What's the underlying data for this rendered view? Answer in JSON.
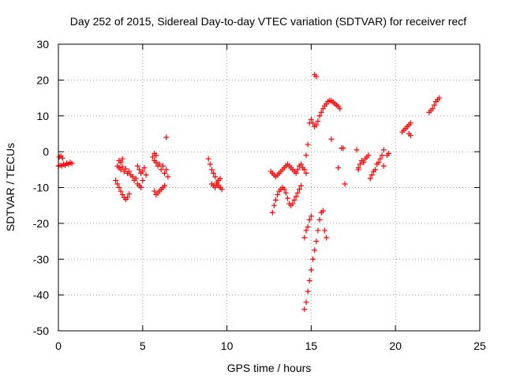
{
  "chart_data": {
    "type": "scatter",
    "title": "Day 252 of 2015, Sidereal Day-to-day VTEC variation (SDTVAR) for receiver recf",
    "xlabel": "GPS time / hours",
    "ylabel": "SDTVAR / TECUs",
    "xlim": [
      0,
      25
    ],
    "ylim": [
      -50,
      30
    ],
    "xticks": [
      0,
      5,
      10,
      15,
      20,
      25
    ],
    "yticks": [
      -50,
      -40,
      -30,
      -20,
      -10,
      0,
      10,
      20,
      30
    ],
    "xtick_labels": [
      "0",
      "5",
      "10",
      "15",
      "20",
      "25"
    ],
    "ytick_labels": [
      "-50",
      "-40",
      "-30",
      "-20",
      "-10",
      "0",
      "10",
      "20",
      "30"
    ],
    "grid": true,
    "marker": "plus",
    "color": "#ff0000",
    "segments": [
      {
        "x": [
          0.0,
          0.1,
          0.2,
          0.3,
          0.4,
          0.5,
          0.6,
          0.7,
          0.8
        ],
        "y": [
          -4.0,
          -3.8,
          -4.0,
          -3.5,
          -3.8,
          -3.2,
          -3.5,
          -3.0,
          -3.3
        ]
      },
      {
        "x": [
          0.05,
          0.15,
          0.25
        ],
        "y": [
          -1.5,
          -1.2,
          -1.8
        ]
      },
      {
        "x": [
          3.4,
          3.5,
          3.6,
          3.7,
          3.8,
          3.9,
          4.0,
          4.1,
          4.2
        ],
        "y": [
          -8.0,
          -9.0,
          -10.0,
          -11.0,
          -12.0,
          -12.8,
          -13.3,
          -12.8,
          -11.8
        ]
      },
      {
        "x": [
          3.5,
          3.6,
          3.7,
          3.8,
          3.9,
          4.0,
          4.1,
          4.2,
          4.3,
          4.4,
          4.5,
          4.6,
          4.7,
          4.8,
          4.9,
          5.0
        ],
        "y": [
          -4.0,
          -4.5,
          -5.0,
          -4.2,
          -5.5,
          -4.8,
          -6.0,
          -5.5,
          -6.5,
          -7.0,
          -8.0,
          -7.5,
          -9.0,
          -9.5,
          -10.0,
          -8.0
        ]
      },
      {
        "x": [
          3.6,
          3.7,
          3.8
        ],
        "y": [
          -2.5,
          -3.0,
          -2.0
        ]
      },
      {
        "x": [
          4.7,
          4.8,
          4.9,
          5.0,
          5.1,
          5.2
        ],
        "y": [
          -4.0,
          -5.0,
          -6.0,
          -5.5,
          -4.5,
          -6.5
        ]
      },
      {
        "x": [
          5.6,
          5.7,
          5.8,
          5.9,
          6.0,
          6.1,
          6.2,
          6.3,
          6.4,
          6.5
        ],
        "y": [
          -1.5,
          -2.5,
          -3.0,
          -4.0,
          -3.5,
          -5.0,
          -4.0,
          -6.0,
          -5.0,
          -7.0
        ]
      },
      {
        "x": [
          5.7,
          5.8,
          5.9,
          6.0,
          6.1,
          6.2,
          6.3
        ],
        "y": [
          -11.0,
          -12.0,
          -11.5,
          -11.0,
          -10.5,
          -10.0,
          -9.5
        ]
      },
      {
        "x": [
          5.7,
          5.8
        ],
        "y": [
          -0.5,
          -1.0
        ]
      },
      {
        "x": [
          6.4
        ],
        "y": [
          4.0
        ]
      },
      {
        "x": [
          8.9,
          9.0,
          9.1,
          9.2,
          9.3,
          9.4,
          9.5,
          9.6,
          9.7
        ],
        "y": [
          -2.0,
          -3.5,
          -5.0,
          -6.0,
          -7.0,
          -8.5,
          -9.5,
          -10.0,
          -10.5
        ]
      },
      {
        "x": [
          9.1,
          9.2,
          9.3,
          9.4,
          9.5,
          9.6
        ],
        "y": [
          -9.0,
          -9.5,
          -10.0,
          -9.0,
          -8.0,
          -7.5
        ]
      },
      {
        "x": [
          12.6,
          12.7,
          12.8,
          12.9,
          13.0,
          13.1,
          13.2,
          13.3,
          13.4,
          13.5,
          13.6,
          13.7,
          13.8,
          13.9,
          14.0,
          14.1,
          14.2,
          14.3,
          14.4,
          14.5,
          14.6,
          14.7
        ],
        "y": [
          -5.5,
          -6.0,
          -6.5,
          -7.0,
          -6.5,
          -6.0,
          -5.5,
          -5.0,
          -4.5,
          -4.0,
          -3.5,
          -4.0,
          -4.5,
          -5.0,
          -5.5,
          -6.0,
          -5.0,
          -4.0,
          -3.5,
          -4.5,
          -5.0,
          -6.0
        ]
      },
      {
        "x": [
          12.7,
          12.8,
          12.9,
          13.0,
          13.1,
          13.2,
          13.3,
          13.4,
          13.5,
          13.6,
          13.7,
          13.8,
          13.9,
          14.0,
          14.1,
          14.2,
          14.3,
          14.4
        ],
        "y": [
          -17.0,
          -15.0,
          -13.5,
          -12.0,
          -11.0,
          -10.5,
          -10.0,
          -10.5,
          -11.5,
          -13.0,
          -14.5,
          -15.0,
          -14.5,
          -13.5,
          -12.5,
          -11.5,
          -10.5,
          -9.5
        ]
      },
      {
        "x": [
          14.6,
          14.7,
          14.8,
          14.9,
          15.0,
          15.1,
          15.2,
          15.3,
          15.4,
          15.5,
          15.6,
          15.7,
          15.8,
          15.9
        ],
        "y": [
          -44.0,
          -42.0,
          -39.0,
          -36.0,
          -33.0,
          -30.0,
          -27.5,
          -25.0,
          -22.0,
          -19.0,
          -17.0,
          -16.5,
          -22.0,
          -24.0
        ]
      },
      {
        "x": [
          14.6,
          14.7,
          14.8,
          14.9,
          15.0
        ],
        "y": [
          -24.0,
          -22.0,
          -21.0,
          -19.0,
          -18.0
        ]
      },
      {
        "x": [
          14.9,
          15.0,
          15.1,
          15.2,
          15.3,
          15.4,
          15.5,
          15.6,
          15.7,
          15.8,
          15.9,
          16.0,
          16.1,
          16.2,
          16.3,
          16.4,
          16.5,
          16.6,
          16.7
        ],
        "y": [
          8.0,
          9.0,
          8.0,
          7.0,
          7.5,
          8.5,
          10.0,
          11.0,
          12.0,
          12.8,
          13.3,
          14.0,
          14.3,
          14.2,
          13.8,
          13.4,
          13.0,
          12.6,
          12.0
        ]
      },
      {
        "x": [
          14.7,
          14.8
        ],
        "y": [
          -1.0,
          2.0
        ]
      },
      {
        "x": [
          15.2,
          15.3
        ],
        "y": [
          21.5,
          21.0
        ]
      },
      {
        "x": [
          16.2,
          16.6,
          16.8
        ],
        "y": [
          3.5,
          -4.5,
          1.0
        ]
      },
      {
        "x": [
          16.9,
          17.0
        ],
        "y": [
          1.0,
          -9.0
        ]
      },
      {
        "x": [
          17.8,
          17.9,
          18.0,
          18.1,
          18.2,
          18.3,
          18.4,
          18.5,
          18.6,
          18.7,
          18.8,
          18.9,
          19.0,
          19.1,
          19.2,
          19.3
        ],
        "y": [
          -4.5,
          -3.5,
          -2.5,
          -3.0,
          -2.0,
          -1.5,
          -1.0,
          -7.5,
          -6.5,
          -5.5,
          -5.0,
          -3.5,
          -3.0,
          -2.0,
          -1.0,
          0.5
        ]
      },
      {
        "x": [
          17.7,
          17.8,
          19.3,
          19.5,
          19.6
        ],
        "y": [
          0.5,
          -5.0,
          -4.0,
          -1.0,
          -0.5
        ]
      },
      {
        "x": [
          20.4,
          20.5,
          20.6,
          20.7,
          20.8,
          20.9
        ],
        "y": [
          5.5,
          6.0,
          6.5,
          7.0,
          7.5,
          8.0
        ]
      },
      {
        "x": [
          20.8,
          20.9
        ],
        "y": [
          5.0,
          4.5
        ]
      },
      {
        "x": [
          22.0,
          22.1,
          22.2,
          22.3,
          22.4,
          22.5,
          22.6
        ],
        "y": [
          11.0,
          11.5,
          12.0,
          13.0,
          14.0,
          14.5,
          15.0
        ]
      }
    ]
  }
}
